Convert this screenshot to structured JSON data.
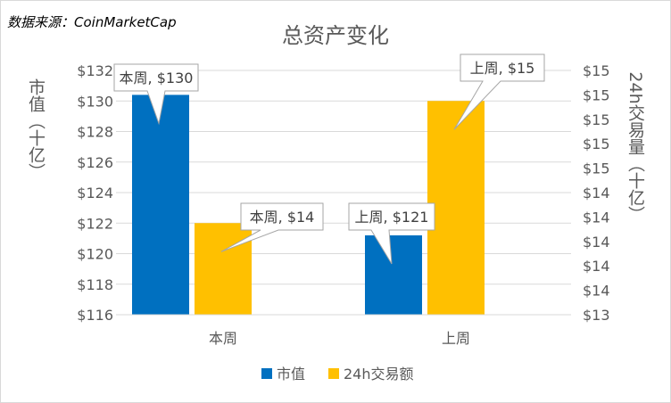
{
  "source_note": "数据来源：CoinMarketCap",
  "chart_data": {
    "type": "bar",
    "title": "总资产变化",
    "categories": [
      "本周",
      "上周"
    ],
    "ylabel_left": "市值（十亿）",
    "ylabel_right": "24h交易量（十亿）",
    "left_axis": {
      "ylim": [
        116,
        132
      ],
      "ticks": [
        "$116",
        "$118",
        "$120",
        "$122",
        "$124",
        "$126",
        "$128",
        "$130",
        "$132"
      ]
    },
    "right_axis": {
      "ylim": [
        13.0,
        15.4
      ],
      "ticks": [
        "$13",
        "$14",
        "$14",
        "$14",
        "$14",
        "$14",
        "$15",
        "$15",
        "$15",
        "$15",
        "$15"
      ]
    },
    "series": [
      {
        "name": "市值",
        "axis": "left",
        "color": "#0070C0",
        "values": [
          130.4,
          121.2
        ],
        "labels": [
          "本周, $130",
          "上周, $121"
        ]
      },
      {
        "name": "24h交易量",
        "axis": "right",
        "color": "#FFC000",
        "values": [
          13.9,
          15.1
        ],
        "labels": [
          "本周, $14",
          "上周, $15"
        ]
      }
    ],
    "legend_position": "bottom",
    "legend": [
      {
        "label": "市值",
        "color": "#0070C0"
      },
      {
        "label": "24h交易额",
        "color": "#FFC000"
      }
    ],
    "grid": true
  }
}
